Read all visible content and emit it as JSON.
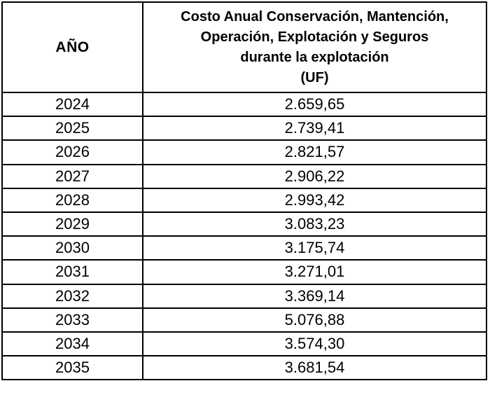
{
  "table": {
    "header": {
      "year_label": "AÑO",
      "cost_label": "Costo Anual Conservación, Mantención, Operación, Explotación y Seguros durante la explotación (UF)",
      "cost_label_lines": [
        "Costo Anual Conservación, Mantención,",
        "Operación, Explotación y Seguros",
        "durante la explotación",
        "(UF)"
      ]
    },
    "rows": [
      {
        "year": "2024",
        "cost": "2.659,65"
      },
      {
        "year": "2025",
        "cost": "2.739,41"
      },
      {
        "year": "2026",
        "cost": "2.821,57"
      },
      {
        "year": "2027",
        "cost": "2.906,22"
      },
      {
        "year": "2028",
        "cost": "2.993,42"
      },
      {
        "year": "2029",
        "cost": "3.083,23"
      },
      {
        "year": "2030",
        "cost": "3.175,74"
      },
      {
        "year": "2031",
        "cost": "3.271,01"
      },
      {
        "year": "2032",
        "cost": "3.369,14"
      },
      {
        "year": "2033",
        "cost": "5.076,88"
      },
      {
        "year": "2034",
        "cost": "3.574,30"
      },
      {
        "year": "2035",
        "cost": "3.681,54"
      }
    ]
  },
  "chart_data": {
    "type": "table",
    "title": "Costo Anual Conservación, Mantención, Operación, Explotación y Seguros durante la explotación (UF)",
    "categories": [
      "2024",
      "2025",
      "2026",
      "2027",
      "2028",
      "2029",
      "2030",
      "2031",
      "2032",
      "2033",
      "2034",
      "2035"
    ],
    "values": [
      2659.65,
      2739.41,
      2821.57,
      2906.22,
      2993.42,
      3083.23,
      3175.74,
      3271.01,
      3369.14,
      5076.88,
      3574.3,
      3681.54
    ]
  },
  "colors": {
    "border-color": "#000000",
    "text-color": "#000000",
    "bg-color": "#ffffff"
  }
}
